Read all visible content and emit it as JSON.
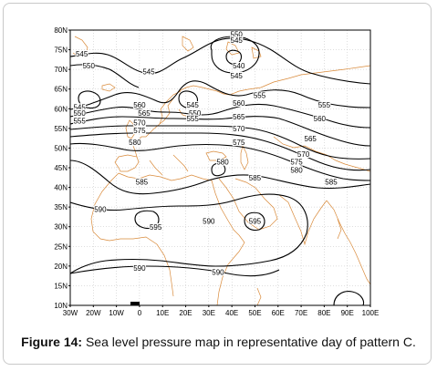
{
  "figure": {
    "caption_prefix": "Figure 14:",
    "caption_text": " Sea level pressure map in representative day of pattern C."
  },
  "map": {
    "lat_ticks": [
      "80N",
      "75N",
      "70N",
      "65N",
      "60N",
      "55N",
      "50N",
      "45N",
      "40N",
      "35N",
      "30N",
      "25N",
      "20N",
      "15N",
      "10N"
    ],
    "lon_ticks": [
      "30W",
      "20W",
      "10W",
      "0",
      "10E",
      "20E",
      "30E",
      "40E",
      "50E",
      "60E",
      "70E",
      "80E",
      "90E",
      "100E"
    ],
    "lat_range": [
      10,
      80
    ],
    "lon_range": [
      -30,
      100
    ],
    "contour_color": "#000000",
    "coastline_color": "#d98a3a",
    "contour_labels": [
      {
        "text": "550",
        "lon": 42,
        "lat": 78.5
      },
      {
        "text": "545",
        "lon": 42,
        "lat": 77
      },
      {
        "text": "540",
        "lon": 43,
        "lat": 70.5
      },
      {
        "text": "545",
        "lon": 42,
        "lat": 68
      },
      {
        "text": "545",
        "lon": -25,
        "lat": 73.5
      },
      {
        "text": "550",
        "lon": -22,
        "lat": 70.5
      },
      {
        "text": "545",
        "lon": 4,
        "lat": 69
      },
      {
        "text": "545",
        "lon": -26,
        "lat": 60
      },
      {
        "text": "550",
        "lon": -26,
        "lat": 58.5
      },
      {
        "text": "555",
        "lon": -26,
        "lat": 56.5
      },
      {
        "text": "560",
        "lon": 0,
        "lat": 60.5
      },
      {
        "text": "565",
        "lon": 2,
        "lat": 58.5
      },
      {
        "text": "570",
        "lon": 0,
        "lat": 56
      },
      {
        "text": "575",
        "lon": 0,
        "lat": 54
      },
      {
        "text": "580",
        "lon": -2,
        "lat": 51
      },
      {
        "text": "545",
        "lon": 23,
        "lat": 60.5
      },
      {
        "text": "550",
        "lon": 24,
        "lat": 58.5
      },
      {
        "text": "555",
        "lon": 23,
        "lat": 57
      },
      {
        "text": "560",
        "lon": 43,
        "lat": 61
      },
      {
        "text": "565",
        "lon": 43,
        "lat": 57.5
      },
      {
        "text": "570",
        "lon": 43,
        "lat": 54.5
      },
      {
        "text": "575",
        "lon": 43,
        "lat": 51
      },
      {
        "text": "555",
        "lon": 52,
        "lat": 63
      },
      {
        "text": "555",
        "lon": 80,
        "lat": 60.5
      },
      {
        "text": "560",
        "lon": 78,
        "lat": 57
      },
      {
        "text": "565",
        "lon": 74,
        "lat": 52
      },
      {
        "text": "570",
        "lon": 71,
        "lat": 48
      },
      {
        "text": "575",
        "lon": 68,
        "lat": 46
      },
      {
        "text": "580",
        "lon": 68,
        "lat": 44
      },
      {
        "text": "580",
        "lon": 36,
        "lat": 46
      },
      {
        "text": "585",
        "lon": 1,
        "lat": 41
      },
      {
        "text": "585",
        "lon": 50,
        "lat": 42
      },
      {
        "text": "585",
        "lon": 83,
        "lat": 41
      },
      {
        "text": "590",
        "lon": -17,
        "lat": 34
      },
      {
        "text": "595",
        "lon": 7,
        "lat": 29.5
      },
      {
        "text": "590",
        "lon": 30,
        "lat": 31
      },
      {
        "text": "595",
        "lon": 50,
        "lat": 31
      },
      {
        "text": "590",
        "lon": 0,
        "lat": 19
      },
      {
        "text": "590",
        "lon": 34,
        "lat": 18
      }
    ]
  }
}
